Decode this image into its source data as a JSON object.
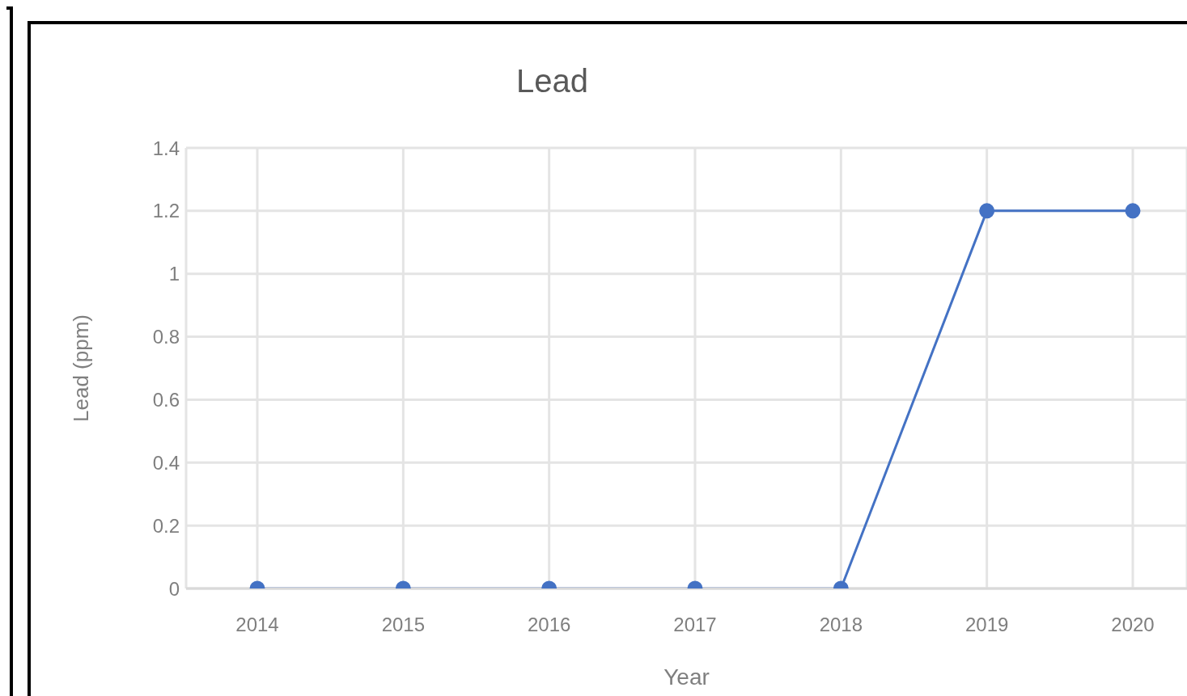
{
  "chart_data": {
    "type": "line",
    "title": "Lead",
    "xlabel": "Year",
    "ylabel": "Lead (ppm)",
    "categories": [
      "2014",
      "2015",
      "2016",
      "2017",
      "2018",
      "2019",
      "2020"
    ],
    "series": [
      {
        "color": "#4472c4",
        "values": [
          0,
          0,
          0,
          0,
          0,
          1.2,
          1.2
        ]
      }
    ],
    "ylim": [
      0,
      1.4
    ],
    "yticks": [
      0,
      0.2,
      0.4,
      0.6,
      0.8,
      1,
      1.2,
      1.4
    ],
    "grid": true,
    "marker": "circle",
    "line_style": "solid"
  }
}
